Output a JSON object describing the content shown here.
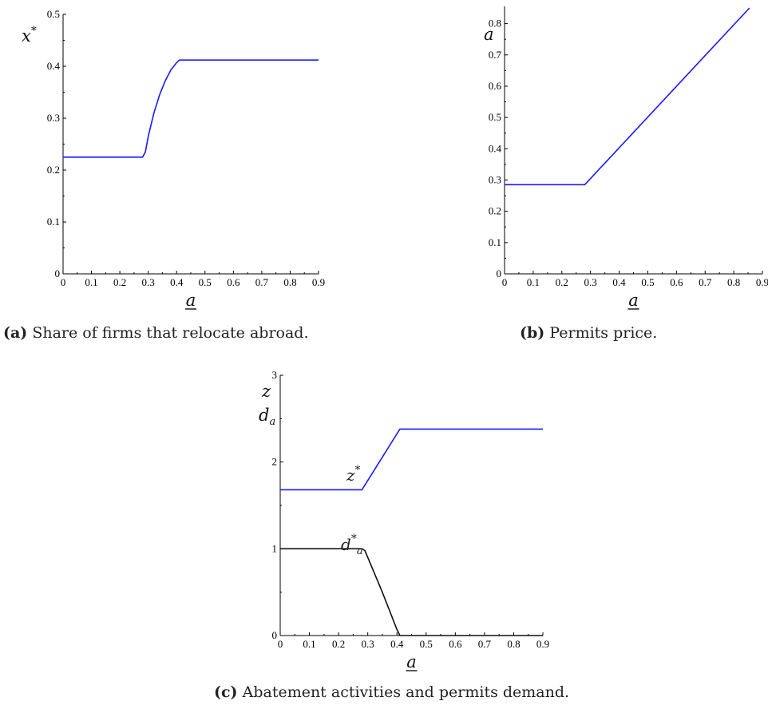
{
  "chart_data": [
    {
      "type": "line",
      "panel": "a",
      "xlabel": "a",
      "ylabel": "x",
      "ylabel_sup": "*",
      "xlim": [
        0,
        0.9
      ],
      "ylim": [
        0,
        0.5
      ],
      "xticks": [
        "0",
        "0.1",
        "0.2",
        "0.3",
        "0.4",
        "0.5",
        "0.6",
        "0.7",
        "0.8",
        "0.9"
      ],
      "yticks": [
        "0",
        "0.1",
        "0.2",
        "0.3",
        "0.4",
        "0.5"
      ],
      "series": [
        {
          "color": "#1a1aff",
          "x": [
            0,
            0.28,
            0.29,
            0.3,
            0.32,
            0.34,
            0.36,
            0.38,
            0.4,
            0.41,
            0.9
          ],
          "y": [
            0.225,
            0.225,
            0.235,
            0.265,
            0.31,
            0.345,
            0.372,
            0.393,
            0.407,
            0.412,
            0.412
          ]
        }
      ]
    },
    {
      "type": "line",
      "panel": "b",
      "xlabel": "a",
      "ylabel": "a",
      "xlim": [
        0,
        0.9
      ],
      "ylim": [
        0,
        0.85
      ],
      "xticks": [
        "0",
        "0.1",
        "0.2",
        "0.3",
        "0.4",
        "0.5",
        "0.6",
        "0.7",
        "0.8",
        "0.9"
      ],
      "yticks": [
        "0",
        "0.1",
        "0.2",
        "0.3",
        "0.4",
        "0.5",
        "0.6",
        "0.7",
        "0.8"
      ],
      "series": [
        {
          "color": "#1a1aff",
          "x": [
            0,
            0.28,
            0.855
          ],
          "y": [
            0.285,
            0.285,
            0.85
          ]
        }
      ]
    },
    {
      "type": "line",
      "panel": "c",
      "xlabel": "a",
      "ylabel": "z",
      "ylabel2": "d",
      "ylabel2_sub": "a",
      "xlim": [
        0,
        0.9
      ],
      "ylim": [
        0,
        3
      ],
      "xticks": [
        "0",
        "0.1",
        "0.2",
        "0.3",
        "0.4",
        "0.5",
        "0.6",
        "0.7",
        "0.8",
        "0.9"
      ],
      "yticks": [
        "0",
        "1",
        "2",
        "3"
      ],
      "series": [
        {
          "label": "z",
          "label_sup": "*",
          "color": "#1a1aff",
          "x": [
            0,
            0.28,
            0.41,
            0.9
          ],
          "y": [
            1.68,
            1.68,
            2.38,
            2.38
          ]
        },
        {
          "label": "d",
          "label_sub": "a",
          "label_sup": "*",
          "color": "#111111",
          "x": [
            0,
            0.28,
            0.29,
            0.3,
            0.35,
            0.4,
            0.41,
            0.9
          ],
          "y": [
            1.0,
            1.0,
            0.98,
            0.9,
            0.5,
            0.07,
            0.0,
            0.0
          ]
        }
      ]
    }
  ],
  "captions": {
    "a_tag": "(a)",
    "a_text": " Share of firms that relocate abroad.",
    "b_tag": "(b)",
    "b_text": " Permits price.",
    "c_tag": "(c)",
    "c_text": " Abatement activities and permits demand."
  }
}
